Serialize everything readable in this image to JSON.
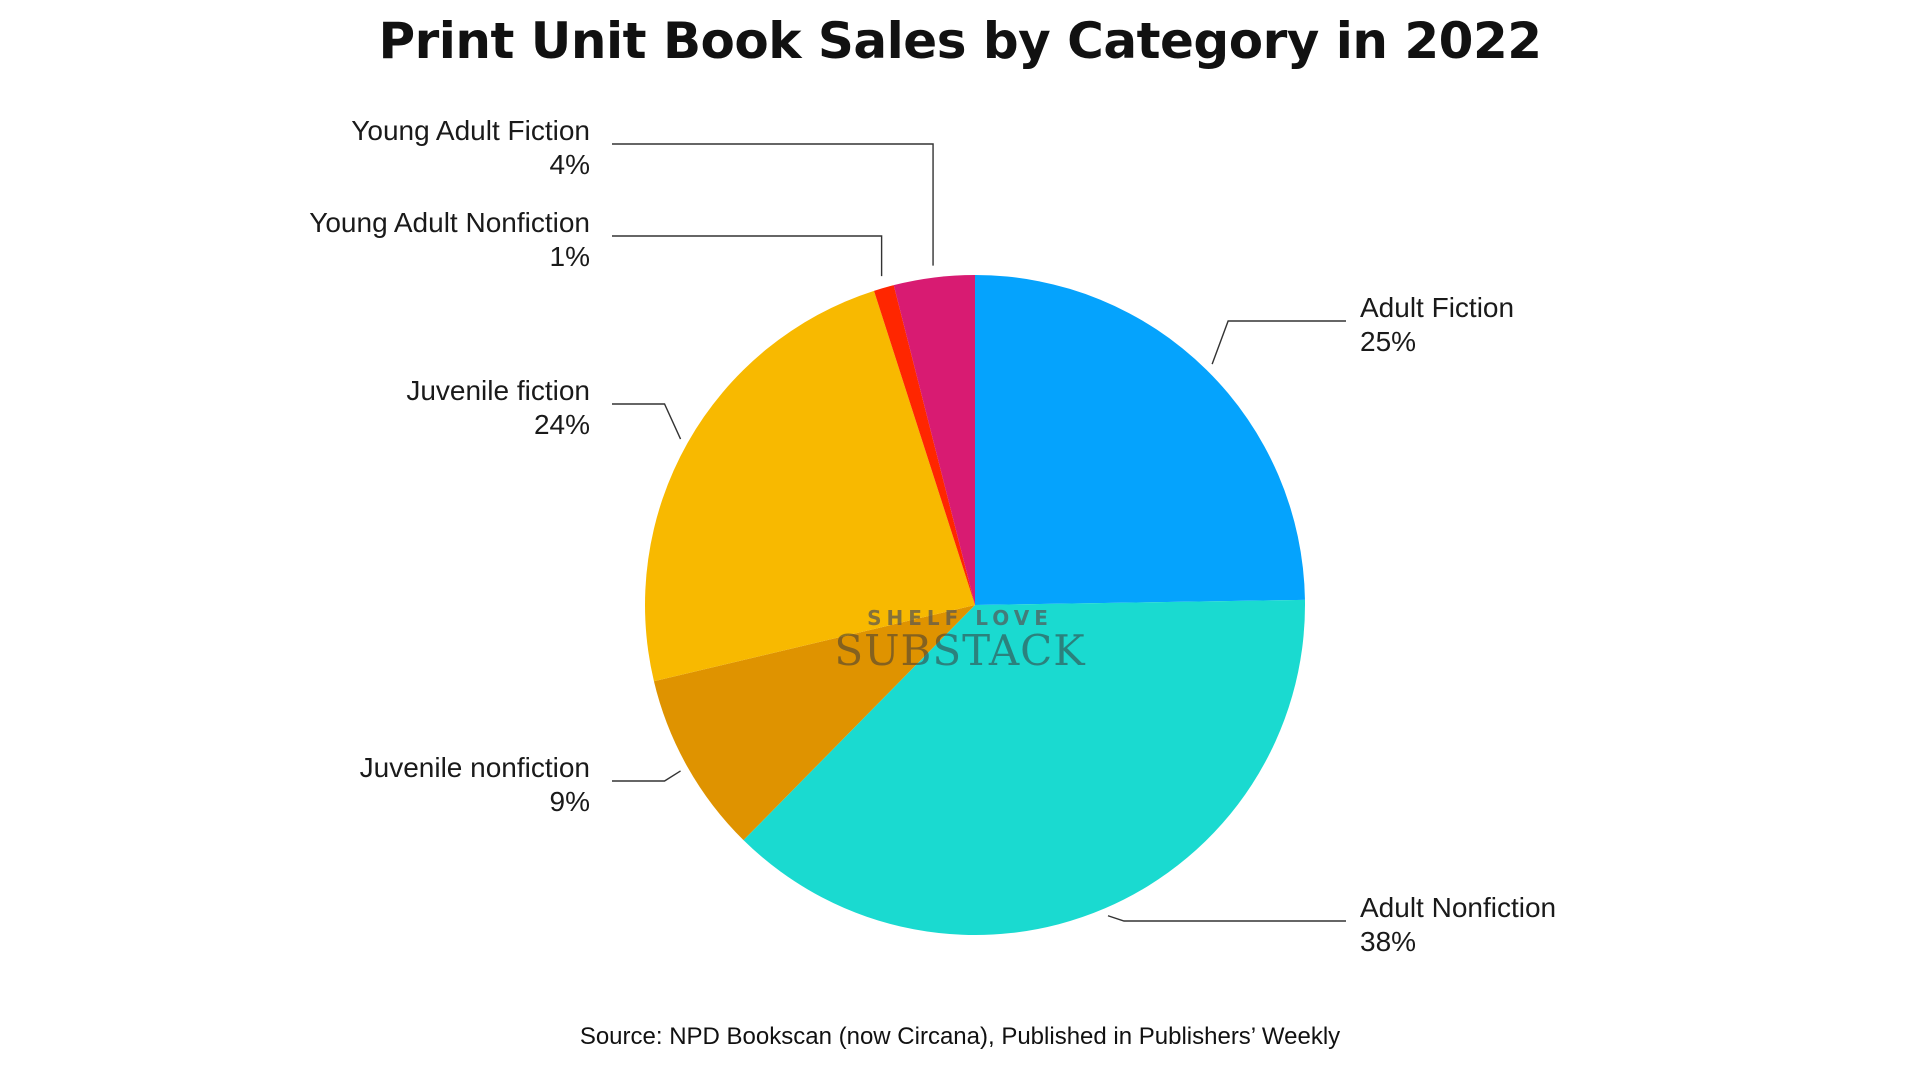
{
  "chart_data": {
    "type": "pie",
    "title": "Print Unit Book Sales by Category in 2022",
    "source": "Source: NPD Bookscan (now Circana), Published in Publishers’ Weekly",
    "slices": [
      {
        "name": "Adult Fiction",
        "value": 25,
        "label": "25%",
        "color": "#05a3fd"
      },
      {
        "name": "Adult Nonfiction",
        "value": 38,
        "label": "38%",
        "color": "#1adad0"
      },
      {
        "name": "Juvenile nonfiction",
        "value": 9,
        "label": "9%",
        "color": "#df9300"
      },
      {
        "name": "Juvenile fiction",
        "value": 24,
        "label": "24%",
        "color": "#f8b900"
      },
      {
        "name": "Young Adult Nonfiction",
        "value": 1,
        "label": "1%",
        "color": "#ff2600"
      },
      {
        "name": "Young Adult Fiction",
        "value": 4,
        "label": "4%",
        "color": "#d81b72"
      }
    ],
    "legend": "none"
  },
  "watermark": {
    "top": "SHELF LOVE",
    "main": "SUBSTACK"
  }
}
